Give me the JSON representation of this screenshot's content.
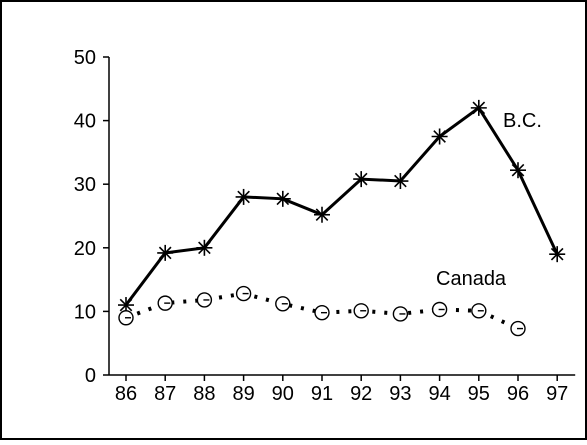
{
  "chart_data": {
    "type": "line",
    "title": "",
    "xlabel": "",
    "ylabel": "",
    "x": [
      "86",
      "87",
      "88",
      "89",
      "90",
      "91",
      "92",
      "93",
      "94",
      "95",
      "96",
      "97"
    ],
    "ylim": [
      0,
      50
    ],
    "yticks": [
      "0",
      "10",
      "20",
      "30",
      "40",
      "50"
    ],
    "grid": false,
    "legend": "none (series labeled directly on chart)",
    "series": [
      {
        "name": "B.C.",
        "style": "solid",
        "marker": "asterisk",
        "color": "#000000",
        "values": [
          11,
          19.2,
          20,
          28,
          27.7,
          25.2,
          30.8,
          30.5,
          37.5,
          42,
          32.2,
          19
        ]
      },
      {
        "name": "Canada",
        "style": "dotted",
        "marker": "circle-dash",
        "color": "#000000",
        "values": [
          9,
          11.3,
          11.8,
          12.8,
          11.2,
          9.8,
          10.1,
          9.6,
          10.3,
          10.1,
          7.3,
          null
        ]
      }
    ]
  }
}
